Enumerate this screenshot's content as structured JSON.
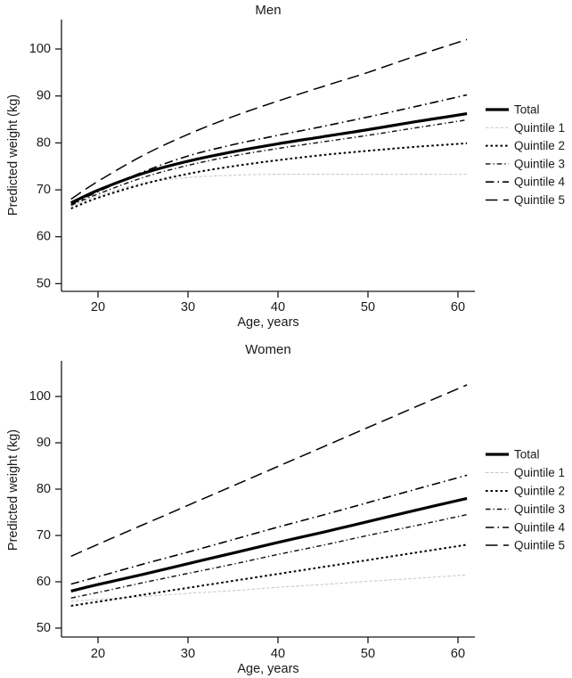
{
  "figure": {
    "background": "#ffffff",
    "text_color": "#1a1a1a",
    "line_color": "#000000",
    "quintile1_color": "#c6c6c6"
  },
  "chart_data": [
    {
      "type": "line",
      "title": "Men",
      "xlabel": "Age, years",
      "ylabel": "Predicted weight (kg)",
      "xlim": [
        15.5,
        62.5
      ],
      "ylim": [
        48,
        106
      ],
      "xticks": [
        20,
        30,
        40,
        50,
        60
      ],
      "yticks": [
        50,
        60,
        70,
        80,
        90,
        100
      ],
      "grid": false,
      "legend_position": "right",
      "x": [
        17,
        20,
        25,
        30,
        35,
        40,
        45,
        50,
        55,
        61
      ],
      "series": [
        {
          "name": "Total",
          "style": "solid-thick",
          "values": [
            67.2,
            69.9,
            73.5,
            76.1,
            78.1,
            79.8,
            81.3,
            82.8,
            84.4,
            86.2
          ]
        },
        {
          "name": "Quintile 1",
          "style": "light-dotted",
          "values": [
            66.4,
            68.7,
            71.4,
            72.6,
            73.1,
            73.3,
            73.3,
            73.3,
            73.3,
            73.3
          ]
        },
        {
          "name": "Quintile 2",
          "style": "dotted",
          "values": [
            66.0,
            68.3,
            71.2,
            73.4,
            75.0,
            76.3,
            77.4,
            78.3,
            79.1,
            79.9
          ]
        },
        {
          "name": "Quintile 3",
          "style": "dash-dot",
          "values": [
            66.7,
            69.1,
            72.6,
            75.2,
            77.2,
            78.8,
            80.2,
            81.6,
            83.1,
            84.9
          ]
        },
        {
          "name": "Quintile 4",
          "style": "long-dash-dot",
          "values": [
            66.9,
            69.6,
            73.8,
            77.2,
            79.6,
            81.6,
            83.5,
            85.5,
            87.6,
            90.2
          ]
        },
        {
          "name": "Quintile 5",
          "style": "long-dash",
          "values": [
            68.0,
            71.8,
            77.3,
            81.8,
            85.6,
            88.9,
            92.0,
            95.0,
            98.3,
            102.0
          ]
        }
      ]
    },
    {
      "type": "line",
      "title": "Women",
      "xlabel": "Age, years",
      "ylabel": "Predicted weight (kg)",
      "xlim": [
        15.5,
        62.5
      ],
      "ylim": [
        48,
        106
      ],
      "xticks": [
        20,
        30,
        40,
        50,
        60
      ],
      "yticks": [
        50,
        60,
        70,
        80,
        90,
        100
      ],
      "grid": false,
      "legend_position": "right",
      "x": [
        17,
        20,
        25,
        30,
        35,
        40,
        45,
        50,
        55,
        61
      ],
      "series": [
        {
          "name": "Total",
          "style": "solid-thick",
          "values": [
            58.0,
            59.4,
            61.6,
            63.9,
            66.2,
            68.5,
            70.7,
            73.0,
            75.3,
            78.0
          ]
        },
        {
          "name": "Quintile 1",
          "style": "light-dotted",
          "values": [
            55.8,
            56.2,
            56.8,
            57.5,
            58.1,
            58.8,
            59.4,
            60.1,
            60.7,
            61.5
          ]
        },
        {
          "name": "Quintile 2",
          "style": "dotted",
          "values": [
            54.8,
            55.7,
            57.2,
            58.7,
            60.2,
            61.7,
            63.2,
            64.7,
            66.2,
            68.0
          ]
        },
        {
          "name": "Quintile 3",
          "style": "dash-dot",
          "values": [
            56.5,
            57.7,
            59.8,
            61.8,
            63.8,
            65.9,
            67.9,
            70.0,
            72.0,
            74.5
          ]
        },
        {
          "name": "Quintile 4",
          "style": "long-dash-dot",
          "values": [
            59.5,
            61.1,
            63.8,
            66.4,
            69.1,
            71.8,
            74.4,
            77.1,
            79.8,
            83.0
          ]
        },
        {
          "name": "Quintile 5",
          "style": "long-dash",
          "values": [
            65.5,
            68.1,
            72.3,
            76.5,
            80.7,
            84.9,
            89.1,
            93.3,
            97.5,
            102.5
          ]
        }
      ]
    }
  ]
}
